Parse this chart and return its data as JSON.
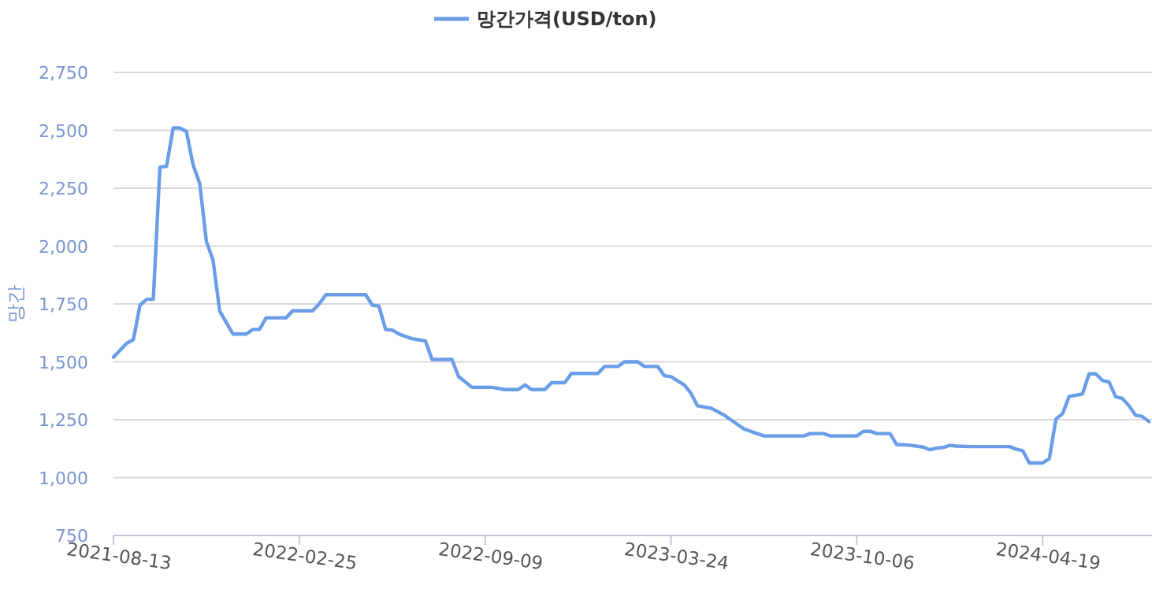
{
  "chart_data": {
    "type": "line",
    "ylabel": "망간",
    "legend": "top",
    "grid": "y",
    "marker": "none",
    "line_style": "solid",
    "xlim": [
      "2021-08-13",
      "2024-08-09"
    ],
    "xticks": [
      "2021-08-13",
      "2022-02-25",
      "2022-09-09",
      "2023-03-24",
      "2023-10-06",
      "2024-04-19"
    ],
    "ylim": [
      750,
      2750
    ],
    "yticks": [
      {
        "value": 750,
        "label": "750"
      },
      {
        "value": 1000,
        "label": "1,000"
      },
      {
        "value": 1250,
        "label": "1,250"
      },
      {
        "value": 1500,
        "label": "1,500"
      },
      {
        "value": 1750,
        "label": "1,750"
      },
      {
        "value": 2000,
        "label": "2,000"
      },
      {
        "value": 2250,
        "label": "2,250"
      },
      {
        "value": 2500,
        "label": "2,500"
      },
      {
        "value": 2750,
        "label": "2,750"
      }
    ],
    "x": [
      "2021-08-13",
      "2021-08-20",
      "2021-08-27",
      "2021-09-03",
      "2021-09-10",
      "2021-09-17",
      "2021-09-24",
      "2021-10-01",
      "2021-10-08",
      "2021-10-15",
      "2021-10-22",
      "2021-10-29",
      "2021-11-05",
      "2021-11-12",
      "2021-11-19",
      "2021-11-26",
      "2021-12-03",
      "2021-12-17",
      "2021-12-31",
      "2022-01-07",
      "2022-01-14",
      "2022-01-21",
      "2022-02-11",
      "2022-02-18",
      "2022-03-11",
      "2022-03-18",
      "2022-03-25",
      "2022-05-06",
      "2022-05-13",
      "2022-05-20",
      "2022-05-27",
      "2022-06-03",
      "2022-06-10",
      "2022-06-24",
      "2022-07-08",
      "2022-07-15",
      "2022-08-05",
      "2022-08-12",
      "2022-08-26",
      "2022-09-16",
      "2022-09-30",
      "2022-10-14",
      "2022-10-21",
      "2022-10-28",
      "2022-11-11",
      "2022-11-18",
      "2022-12-02",
      "2022-12-09",
      "2023-01-06",
      "2023-01-13",
      "2023-01-27",
      "2023-02-03",
      "2023-02-17",
      "2023-02-24",
      "2023-03-10",
      "2023-03-17",
      "2023-03-24",
      "2023-04-07",
      "2023-04-14",
      "2023-04-21",
      "2023-05-05",
      "2023-05-19",
      "2023-05-26",
      "2023-06-09",
      "2023-06-30",
      "2023-08-11",
      "2023-08-18",
      "2023-09-01",
      "2023-09-08",
      "2023-10-06",
      "2023-10-13",
      "2023-10-20",
      "2023-10-27",
      "2023-11-10",
      "2023-11-17",
      "2023-12-01",
      "2023-12-15",
      "2023-12-22",
      "2023-12-29",
      "2024-01-05",
      "2024-01-12",
      "2024-01-19",
      "2024-02-02",
      "2024-03-15",
      "2024-03-22",
      "2024-03-29",
      "2024-04-05",
      "2024-04-19",
      "2024-04-26",
      "2024-05-03",
      "2024-05-10",
      "2024-05-17",
      "2024-05-31",
      "2024-06-07",
      "2024-06-14",
      "2024-06-21",
      "2024-06-28",
      "2024-07-05",
      "2024-07-12",
      "2024-07-19",
      "2024-07-26",
      "2024-08-02",
      "2024-08-09"
    ],
    "series": [
      {
        "name": "망간가격(USD/ton)",
        "color": "#6a9de8",
        "values": [
          1520,
          1550,
          1580,
          1596,
          1745,
          1770,
          1770,
          2340,
          2345,
          2510,
          2510,
          2495,
          2350,
          2270,
          2020,
          1940,
          1720,
          1620,
          1620,
          1640,
          1640,
          1690,
          1690,
          1720,
          1720,
          1750,
          1790,
          1790,
          1745,
          1740,
          1640,
          1637,
          1620,
          1600,
          1590,
          1510,
          1510,
          1436,
          1390,
          1390,
          1380,
          1380,
          1400,
          1380,
          1380,
          1410,
          1410,
          1450,
          1450,
          1480,
          1480,
          1500,
          1500,
          1480,
          1480,
          1440,
          1436,
          1400,
          1365,
          1310,
          1300,
          1270,
          1250,
          1210,
          1180,
          1180,
          1190,
          1190,
          1180,
          1180,
          1200,
          1200,
          1190,
          1190,
          1143,
          1140,
          1132,
          1120,
          1127,
          1130,
          1139,
          1136,
          1134,
          1134,
          1123,
          1116,
          1063,
          1063,
          1081,
          1253,
          1276,
          1351,
          1361,
          1448,
          1448,
          1420,
          1413,
          1349,
          1342,
          1310,
          1269,
          1264,
          1242
        ]
      }
    ]
  }
}
